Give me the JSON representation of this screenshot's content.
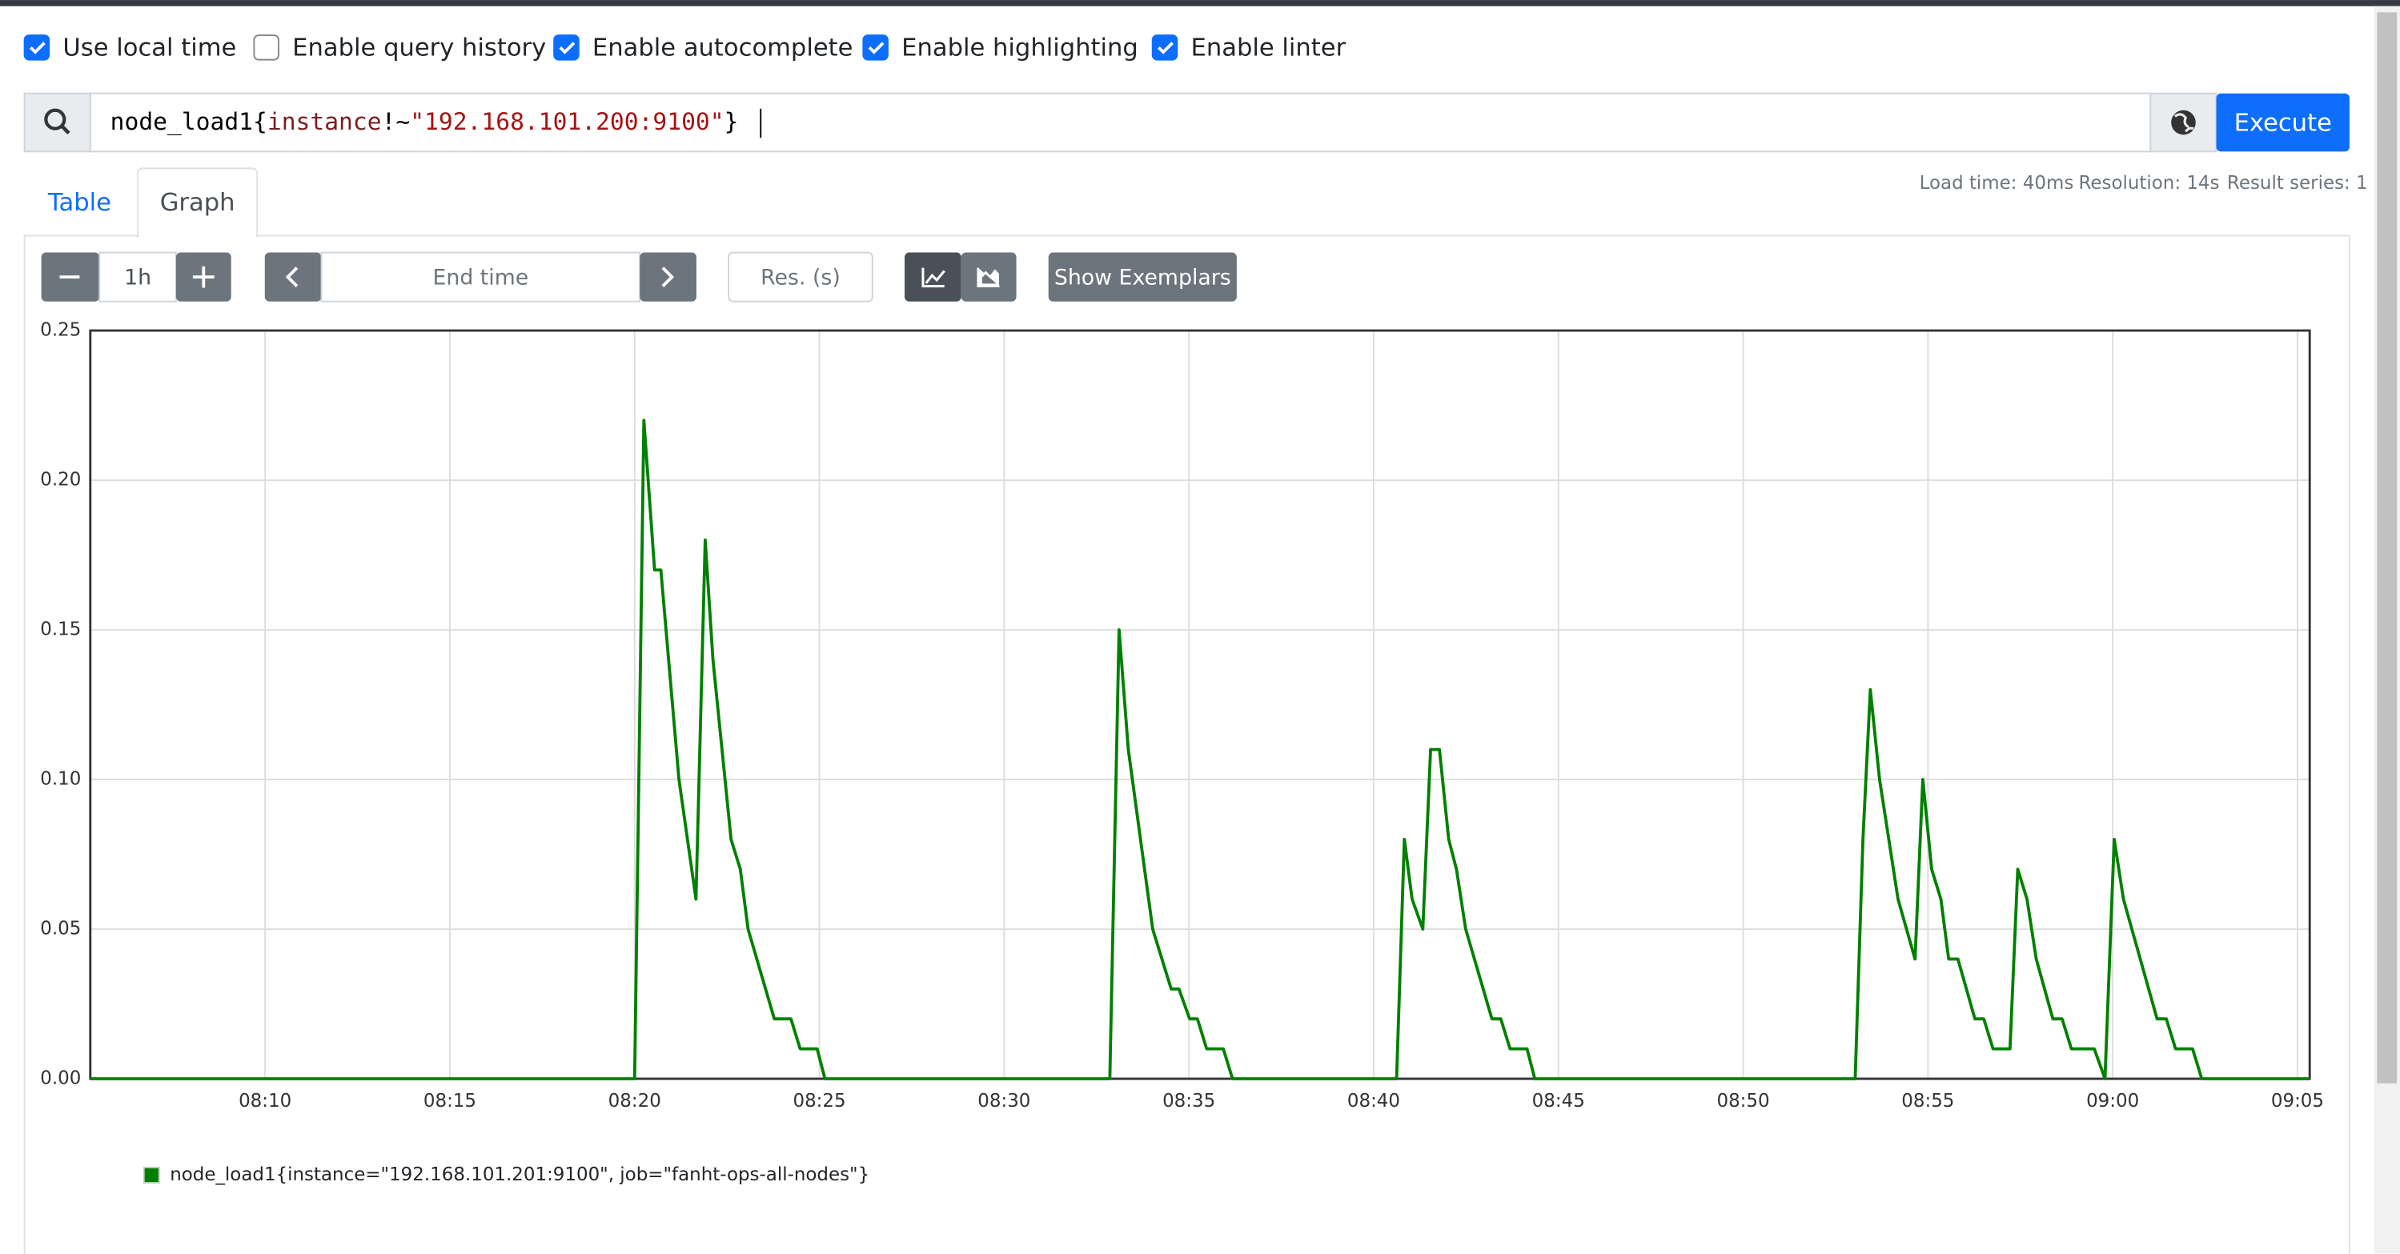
{
  "options": [
    {
      "label": "Use local time",
      "checked": true
    },
    {
      "label": "Enable query history",
      "checked": false
    },
    {
      "label": "Enable autocomplete",
      "checked": true
    },
    {
      "label": "Enable highlighting",
      "checked": true
    },
    {
      "label": "Enable linter",
      "checked": true
    }
  ],
  "query": {
    "parts": [
      {
        "text": "node_load1",
        "color": "#000000"
      },
      {
        "text": "{",
        "color": "#000000"
      },
      {
        "text": "instance",
        "color": "#7a1f1f"
      },
      {
        "text": "!~",
        "color": "#000000"
      },
      {
        "text": "\"192.168.101.200:9100\"",
        "color": "#a31515"
      },
      {
        "text": "}",
        "color": "#000000"
      }
    ]
  },
  "execute_button": "Execute",
  "tabs": [
    "Table",
    "Graph"
  ],
  "active_tab": 1,
  "stats": [
    "Load time: 40ms",
    "Resolution: 14s",
    "Result series: 1"
  ],
  "controls": {
    "range": "1h",
    "end_time": "End time",
    "resolution": "Res. (s)",
    "exemplars": "Show Exemplars"
  },
  "chart_data": {
    "type": "line",
    "x": [
      5.27,
      20.0,
      20.25,
      20.54,
      20.71,
      21.2,
      21.66,
      21.91,
      22.12,
      22.61,
      22.86,
      23.07,
      23.78,
      24.23,
      24.48,
      24.94,
      25.15,
      32.86,
      33.11,
      33.36,
      34.02,
      34.52,
      34.73,
      35.02,
      35.23,
      35.48,
      35.93,
      36.18,
      40.62,
      40.83,
      41.04,
      41.33,
      41.54,
      41.78,
      42.03,
      42.24,
      42.49,
      43.2,
      43.44,
      43.69,
      44.15,
      44.36,
      53.03,
      53.24,
      53.44,
      53.69,
      54.19,
      54.65,
      54.86,
      55.1,
      55.35,
      55.56,
      55.81,
      56.27,
      56.51,
      56.76,
      57.22,
      57.43,
      57.68,
      57.93,
      58.38,
      58.63,
      58.88,
      59.5,
      59.79,
      60.04,
      60.29,
      61.2,
      61.45,
      61.7,
      62.16,
      62.41,
      65.33
    ],
    "series": [
      {
        "name": "node_load1{instance=\"192.168.101.201:9100\", job=\"fanht-ops-all-nodes\"}",
        "color": "#008000",
        "values": [
          0,
          0,
          0.22,
          0.17,
          0.17,
          0.1,
          0.06,
          0.18,
          0.14,
          0.08,
          0.07,
          0.05,
          0.02,
          0.02,
          0.01,
          0.01,
          0,
          0,
          0.15,
          0.11,
          0.05,
          0.03,
          0.03,
          0.02,
          0.02,
          0.01,
          0.01,
          0,
          0,
          0.08,
          0.06,
          0.05,
          0.11,
          0.11,
          0.08,
          0.07,
          0.05,
          0.02,
          0.02,
          0.01,
          0.01,
          0,
          0,
          0.08,
          0.13,
          0.1,
          0.06,
          0.04,
          0.1,
          0.07,
          0.06,
          0.04,
          0.04,
          0.02,
          0.02,
          0.01,
          0.01,
          0.07,
          0.06,
          0.04,
          0.02,
          0.02,
          0.01,
          0.01,
          0,
          0.08,
          0.06,
          0.02,
          0.02,
          0.01,
          0.01,
          0,
          0
        ]
      }
    ],
    "xlim": [
      5.27,
      65.33
    ],
    "xticks": [
      {
        "value": 10,
        "label": "08:10"
      },
      {
        "value": 15,
        "label": "08:15"
      },
      {
        "value": 20,
        "label": "08:20"
      },
      {
        "value": 25,
        "label": "08:25"
      },
      {
        "value": 30,
        "label": "08:30"
      },
      {
        "value": 35,
        "label": "08:35"
      },
      {
        "value": 40,
        "label": "08:40"
      },
      {
        "value": 45,
        "label": "08:45"
      },
      {
        "value": 50,
        "label": "08:50"
      },
      {
        "value": 55,
        "label": "08:55"
      },
      {
        "value": 60,
        "label": "09:00"
      },
      {
        "value": 65,
        "label": "09:05"
      }
    ],
    "ylim": [
      0,
      0.25
    ],
    "yticks": [
      {
        "value": 0,
        "label": "0.00"
      },
      {
        "value": 0.05,
        "label": "0.05"
      },
      {
        "value": 0.1,
        "label": "0.10"
      },
      {
        "value": 0.15,
        "label": "0.15"
      },
      {
        "value": 0.2,
        "label": "0.20"
      },
      {
        "value": 0.25,
        "label": "0.25"
      }
    ],
    "grid": true
  }
}
